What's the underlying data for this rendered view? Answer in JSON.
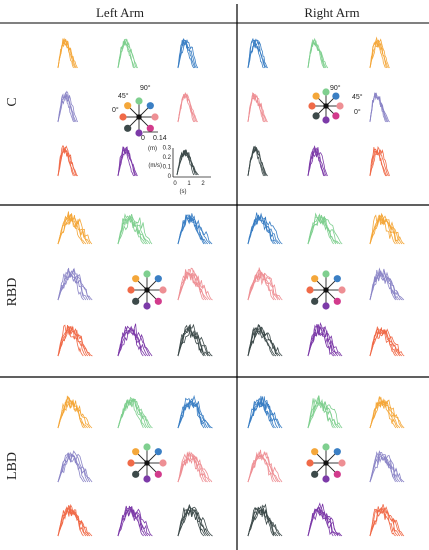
{
  "header": {
    "left": "Left Arm",
    "right": "Right Arm"
  },
  "rows": [
    {
      "label": "C"
    },
    {
      "label": "RBD"
    },
    {
      "label": "LBD"
    }
  ],
  "colors": {
    "orange": "#f4a73a",
    "green": "#7fcf8f",
    "blue": "#3b7fc4",
    "lavender": "#8c86c7",
    "pink": "#ee8f94",
    "red": "#f06a48",
    "purple": "#7c3aa8",
    "dark": "#3d4a4a",
    "magenta": "#d23b8c",
    "grid": "#000000"
  },
  "legend": {
    "angle_90": "90°",
    "angle_45": "45°",
    "angle_0": "0°",
    "scale_zero": "0",
    "scale_max": "0.14",
    "scale_unit": "(m)",
    "speed_unit": "(m/s)",
    "speed_ticks": [
      "0",
      "0.1",
      "0.2",
      "0.3"
    ],
    "time_unit": "(s)",
    "time_ticks": [
      "0",
      "1",
      "2"
    ]
  }
}
